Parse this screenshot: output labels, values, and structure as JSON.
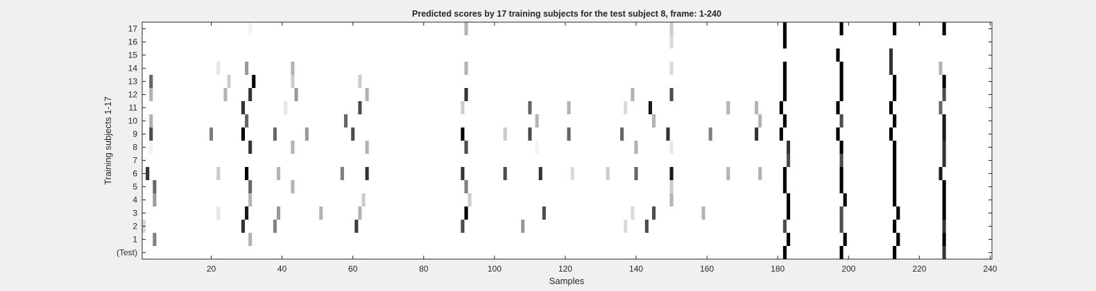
{
  "chart_data": {
    "type": "heatmap",
    "title": "Predicted scores by 17 training subjects for the test subject 8, frame: 1-240",
    "xlabel": "Samples",
    "ylabel": "Training subjects 1-17",
    "xlim": [
      1,
      240
    ],
    "x_ticks": [
      20,
      40,
      60,
      80,
      100,
      120,
      140,
      160,
      180,
      200,
      220,
      240
    ],
    "y_tick_labels": [
      "(Test)",
      "1",
      "2",
      "3",
      "4",
      "5",
      "6",
      "7",
      "8",
      "9",
      "10",
      "11",
      "12",
      "13",
      "14",
      "15",
      "16",
      "17"
    ],
    "colormap": "white-to-black (higher score = darker)",
    "background_color": "#ffffff",
    "grid": false,
    "legend": "none",
    "rows": [
      {
        "label": "(Test)",
        "cells": [
          [
            182,
            1.0
          ],
          [
            198,
            1.0
          ],
          [
            213,
            1.0
          ],
          [
            227,
            0.8
          ]
        ]
      },
      {
        "label": "1",
        "cells": [
          [
            4,
            0.5
          ],
          [
            31,
            0.3
          ],
          [
            183,
            1.0
          ],
          [
            199,
            1.0
          ],
          [
            214,
            1.0
          ],
          [
            227,
            1.0
          ]
        ]
      },
      {
        "label": "2",
        "cells": [
          [
            1,
            0.15
          ],
          [
            29,
            0.8
          ],
          [
            38,
            0.5
          ],
          [
            61,
            0.75
          ],
          [
            91,
            0.7
          ],
          [
            108,
            0.4
          ],
          [
            137,
            0.15
          ],
          [
            143,
            0.7
          ],
          [
            182,
            0.7
          ],
          [
            198,
            0.7
          ],
          [
            213,
            1.0
          ],
          [
            227,
            0.8
          ]
        ]
      },
      {
        "label": "3",
        "cells": [
          [
            22,
            0.1
          ],
          [
            30,
            0.9
          ],
          [
            39,
            0.4
          ],
          [
            51,
            0.3
          ],
          [
            62,
            0.3
          ],
          [
            92,
            1.0
          ],
          [
            114,
            0.7
          ],
          [
            139,
            0.15
          ],
          [
            145,
            0.7
          ],
          [
            159,
            0.3
          ],
          [
            183,
            1.0
          ],
          [
            198,
            0.7
          ],
          [
            214,
            1.0
          ],
          [
            227,
            1.0
          ]
        ]
      },
      {
        "label": "4",
        "cells": [
          [
            4,
            0.4
          ],
          [
            31,
            0.3
          ],
          [
            63,
            0.2
          ],
          [
            93,
            0.2
          ],
          [
            150,
            0.3
          ],
          [
            183,
            1.0
          ],
          [
            199,
            1.0
          ],
          [
            213,
            1.0
          ],
          [
            227,
            1.0
          ]
        ]
      },
      {
        "label": "5",
        "cells": [
          [
            4,
            0.6
          ],
          [
            31,
            0.6
          ],
          [
            43,
            0.3
          ],
          [
            92,
            0.5
          ],
          [
            150,
            0.2
          ],
          [
            182,
            1.0
          ],
          [
            198,
            1.0
          ],
          [
            213,
            1.0
          ],
          [
            227,
            1.0
          ]
        ]
      },
      {
        "label": "6",
        "cells": [
          [
            2,
            0.8
          ],
          [
            22,
            0.2
          ],
          [
            30,
            1.0
          ],
          [
            39,
            0.3
          ],
          [
            57,
            0.5
          ],
          [
            64,
            0.8
          ],
          [
            91,
            0.8
          ],
          [
            103,
            0.7
          ],
          [
            113,
            0.8
          ],
          [
            122,
            0.15
          ],
          [
            132,
            0.2
          ],
          [
            140,
            0.6
          ],
          [
            150,
            0.9
          ],
          [
            166,
            0.3
          ],
          [
            175,
            0.3
          ],
          [
            182,
            1.0
          ],
          [
            198,
            1.0
          ],
          [
            213,
            1.0
          ],
          [
            226,
            0.9
          ]
        ]
      },
      {
        "label": "7",
        "cells": [
          [
            183,
            0.7
          ],
          [
            198,
            0.7
          ],
          [
            213,
            1.0
          ],
          [
            227,
            0.8
          ]
        ]
      },
      {
        "label": "8",
        "cells": [
          [
            3,
            0.05
          ],
          [
            31,
            0.8
          ],
          [
            43,
            0.3
          ],
          [
            64,
            0.3
          ],
          [
            92,
            0.7
          ],
          [
            112,
            0.05
          ],
          [
            140,
            0.3
          ],
          [
            150,
            0.1
          ],
          [
            183,
            0.8
          ],
          [
            198,
            1.0
          ],
          [
            213,
            1.0
          ],
          [
            227,
            0.8
          ]
        ]
      },
      {
        "label": "9",
        "cells": [
          [
            3,
            0.7
          ],
          [
            20,
            0.5
          ],
          [
            29,
            1.0
          ],
          [
            38,
            0.6
          ],
          [
            47,
            0.4
          ],
          [
            60,
            0.7
          ],
          [
            91,
            1.0
          ],
          [
            103,
            0.2
          ],
          [
            110,
            0.7
          ],
          [
            121,
            0.6
          ],
          [
            136,
            0.6
          ],
          [
            149,
            0.8
          ],
          [
            161,
            0.5
          ],
          [
            174,
            0.8
          ],
          [
            181,
            1.0
          ],
          [
            197,
            1.0
          ],
          [
            212,
            1.0
          ],
          [
            227,
            0.9
          ]
        ]
      },
      {
        "label": "10",
        "cells": [
          [
            3,
            0.3
          ],
          [
            30,
            0.6
          ],
          [
            58,
            0.6
          ],
          [
            112,
            0.3
          ],
          [
            145,
            0.3
          ],
          [
            175,
            0.3
          ],
          [
            182,
            1.0
          ],
          [
            198,
            0.7
          ],
          [
            213,
            1.0
          ],
          [
            227,
            0.9
          ]
        ]
      },
      {
        "label": "11",
        "cells": [
          [
            29,
            0.8
          ],
          [
            41,
            0.1
          ],
          [
            62,
            0.7
          ],
          [
            91,
            0.2
          ],
          [
            110,
            0.6
          ],
          [
            121,
            0.3
          ],
          [
            137,
            0.15
          ],
          [
            144,
            0.9
          ],
          [
            166,
            0.3
          ],
          [
            174,
            0.3
          ],
          [
            181,
            1.0
          ],
          [
            197,
            1.0
          ],
          [
            212,
            1.0
          ],
          [
            226,
            0.6
          ]
        ]
      },
      {
        "label": "12",
        "cells": [
          [
            3,
            0.3
          ],
          [
            24,
            0.3
          ],
          [
            31,
            0.8
          ],
          [
            44,
            0.4
          ],
          [
            64,
            0.3
          ],
          [
            92,
            0.8
          ],
          [
            139,
            0.3
          ],
          [
            150,
            0.7
          ],
          [
            182,
            1.0
          ],
          [
            198,
            1.0
          ],
          [
            213,
            1.0
          ],
          [
            227,
            0.7
          ]
        ]
      },
      {
        "label": "13",
        "cells": [
          [
            3,
            0.6
          ],
          [
            25,
            0.2
          ],
          [
            32,
            1.0
          ],
          [
            43,
            0.2
          ],
          [
            62,
            0.2
          ],
          [
            182,
            1.0
          ],
          [
            198,
            1.0
          ],
          [
            213,
            1.0
          ],
          [
            227,
            1.0
          ]
        ]
      },
      {
        "label": "14",
        "cells": [
          [
            22,
            0.1
          ],
          [
            30,
            0.4
          ],
          [
            43,
            0.3
          ],
          [
            92,
            0.3
          ],
          [
            150,
            0.15
          ],
          [
            182,
            1.0
          ],
          [
            198,
            1.0
          ],
          [
            212,
            0.8
          ],
          [
            226,
            0.3
          ]
        ]
      },
      {
        "label": "15",
        "cells": [
          [
            197,
            1.0
          ],
          [
            212,
            0.8
          ]
        ]
      },
      {
        "label": "16",
        "cells": [
          [
            150,
            0.15
          ],
          [
            182,
            1.0
          ]
        ]
      },
      {
        "label": "17",
        "cells": [
          [
            31,
            0.05
          ],
          [
            92,
            0.3
          ],
          [
            150,
            0.2
          ],
          [
            182,
            1.0
          ],
          [
            198,
            1.0
          ],
          [
            213,
            1.0
          ],
          [
            227,
            1.0
          ]
        ]
      }
    ]
  }
}
